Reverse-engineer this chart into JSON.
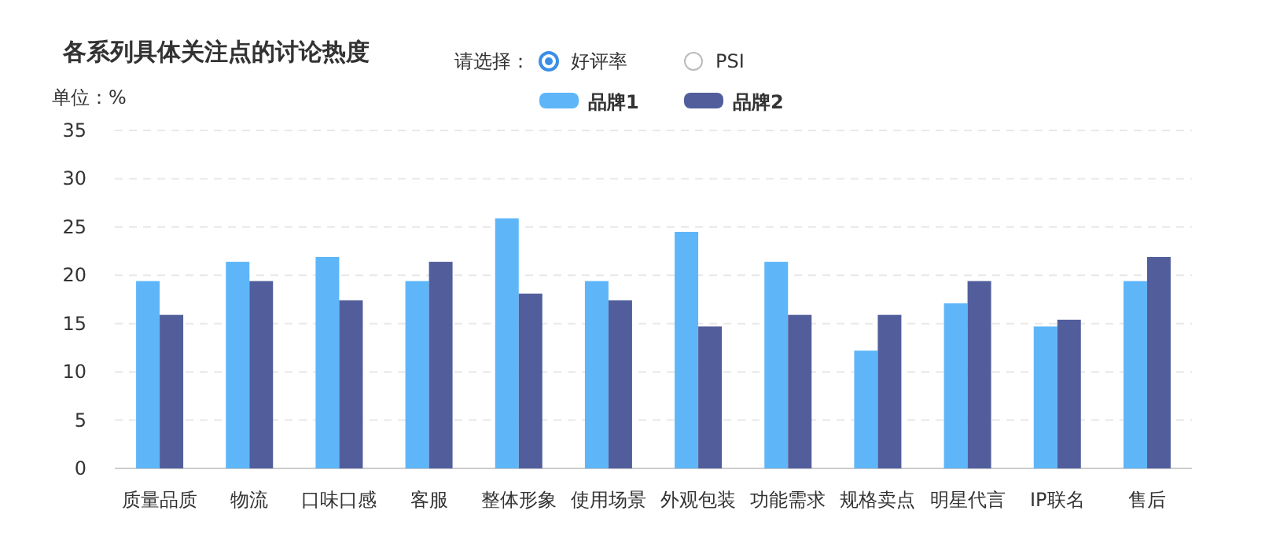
{
  "chart_data": {
    "type": "bar",
    "title": "各系列具体关注点的讨论热度",
    "ylabel": "单位：%",
    "annotations": [
      "请选择：",
      "好评率",
      "PSI"
    ],
    "categories": [
      "质量品质",
      "物流",
      "口味口感",
      "客服",
      "整体形象",
      "使用场景",
      "外观包装",
      "功能需求",
      "规格卖点",
      "明星代言",
      "IP联名",
      "售后"
    ],
    "series": [
      {
        "name": "品牌1",
        "color": "#5eb6f9",
        "values": [
          19.4,
          21.4,
          21.9,
          19.4,
          25.9,
          19.4,
          24.5,
          21.4,
          12.2,
          17.1,
          14.7,
          19.4
        ]
      },
      {
        "name": "品牌2",
        "color": "#525e9b",
        "values": [
          15.9,
          19.4,
          17.4,
          21.4,
          18.1,
          17.4,
          14.7,
          15.9,
          15.9,
          19.4,
          15.4,
          21.9
        ]
      }
    ],
    "ylim": [
      0,
      35
    ],
    "yticks": [
      0,
      5,
      10,
      15,
      20,
      25,
      30,
      35
    ],
    "grid": "y",
    "legend": "top"
  }
}
